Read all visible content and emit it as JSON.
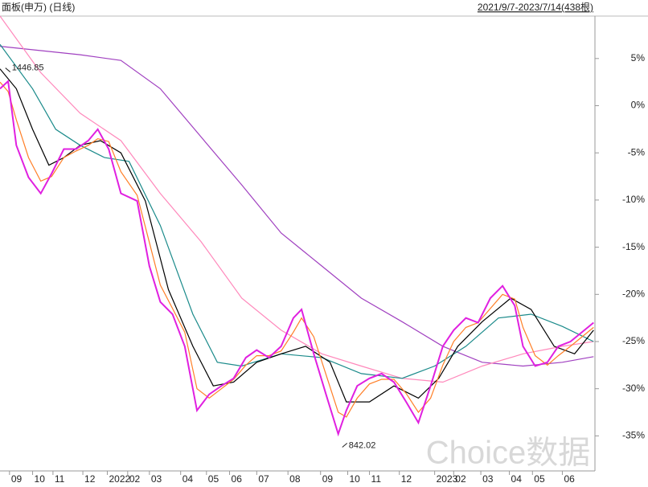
{
  "chart_data": {
    "type": "line",
    "title": "面板(申万) (日线)",
    "subtitle": "2021/9/7-2023/7/14(438根)",
    "watermark": "Choice数据",
    "annotations": [
      {
        "text": "1446.85",
        "x": 4,
        "y": 4.0
      },
      {
        "text": "842.02",
        "x": 252,
        "y": -36.2
      }
    ],
    "x": [
      0,
      6,
      12,
      21,
      30,
      38,
      47,
      56,
      65,
      72,
      80,
      89,
      101,
      110,
      118,
      127,
      136,
      145,
      154,
      163,
      172,
      181,
      189,
      198,
      207,
      216,
      222,
      231,
      240,
      249,
      255,
      263,
      272,
      281,
      290,
      299,
      308,
      317,
      326,
      334,
      343,
      352,
      361,
      370,
      379,
      385,
      394,
      403,
      411,
      420,
      437
    ],
    "xlim": [
      0,
      438
    ],
    "xticks": [
      {
        "value": 7,
        "label": "09"
      },
      {
        "value": 24,
        "label": "10"
      },
      {
        "value": 39,
        "label": "11"
      },
      {
        "value": 61,
        "label": "12"
      },
      {
        "value": 79,
        "label": "2022"
      },
      {
        "value": 94,
        "label": "02"
      },
      {
        "value": 110,
        "label": "03"
      },
      {
        "value": 133,
        "label": "04"
      },
      {
        "value": 152,
        "label": "05"
      },
      {
        "value": 169,
        "label": "06"
      },
      {
        "value": 189,
        "label": "07"
      },
      {
        "value": 212,
        "label": "08"
      },
      {
        "value": 236,
        "label": "09"
      },
      {
        "value": 256,
        "label": "10"
      },
      {
        "value": 272,
        "label": "11"
      },
      {
        "value": 294,
        "label": "12"
      },
      {
        "value": 320,
        "label": "2023"
      },
      {
        "value": 334,
        "label": "02"
      },
      {
        "value": 354,
        "label": "03"
      },
      {
        "value": 375,
        "label": "04"
      },
      {
        "value": 392,
        "label": "05"
      },
      {
        "value": 414,
        "label": "06"
      }
    ],
    "ylim": [
      -36.5,
      9.5
    ],
    "yticks": [
      {
        "value": 5,
        "label": "5%"
      },
      {
        "value": 0,
        "label": "0%"
      },
      {
        "value": -5,
        "label": "-5%"
      },
      {
        "value": -10,
        "label": "-10%"
      },
      {
        "value": -15,
        "label": "-15%"
      },
      {
        "value": -20,
        "label": "-20%"
      },
      {
        "value": -25,
        "label": "-25%"
      },
      {
        "value": -30,
        "label": "-30%"
      },
      {
        "value": -35,
        "label": "-35%"
      }
    ],
    "series": [
      {
        "color": "#a040c0",
        "x": [
          0,
          59,
          89,
          118,
          148,
          178,
          207,
          237,
          266,
          296,
          326,
          355,
          385,
          414,
          437
        ],
        "values": [
          6.3,
          5.4,
          4.8,
          1.8,
          -3.3,
          -8.4,
          -13.5,
          -17.0,
          -20.4,
          -22.9,
          -25.5,
          -27.2,
          -27.6,
          -27.2,
          -26.6
        ]
      },
      {
        "color": "#ff88bb",
        "x": [
          0,
          30,
          59,
          89,
          118,
          148,
          178,
          207,
          237,
          266,
          296,
          326,
          355,
          385,
          414,
          437
        ],
        "values": [
          9.5,
          3.5,
          -0.8,
          -3.7,
          -9.3,
          -14.4,
          -20.4,
          -23.8,
          -26.3,
          -27.6,
          -28.9,
          -29.3,
          -27.6,
          -26.3,
          -25.5,
          -25.0
        ]
      },
      {
        "color": "#1a8a8a",
        "x": [
          0,
          24,
          41,
          59,
          77,
          95,
          118,
          142,
          160,
          178,
          207,
          237,
          266,
          296,
          320,
          343,
          367,
          391,
          414,
          437
        ],
        "values": [
          6.5,
          1.8,
          -2.5,
          -4.2,
          -5.5,
          -5.9,
          -12.7,
          -22.1,
          -27.2,
          -27.6,
          -26.3,
          -26.7,
          -28.4,
          -28.9,
          -27.6,
          -25.5,
          -22.5,
          -22.1,
          -23.4,
          -25.0
        ]
      },
      {
        "color": "#000000",
        "x": [
          0,
          12,
          24,
          36,
          47,
          59,
          74,
          89,
          107,
          124,
          142,
          157,
          172,
          189,
          207,
          225,
          243,
          255,
          272,
          290,
          308,
          323,
          337,
          355,
          376,
          391,
          408,
          423,
          437
        ],
        "values": [
          3.9,
          1.8,
          -2.5,
          -6.3,
          -5.5,
          -4.2,
          -3.7,
          -5.0,
          -10.1,
          -19.5,
          -25.5,
          -29.7,
          -29.3,
          -27.2,
          -26.3,
          -25.5,
          -27.2,
          -31.4,
          -31.4,
          -29.7,
          -31.0,
          -28.9,
          -25.5,
          -22.9,
          -20.4,
          -21.6,
          -25.5,
          -26.3,
          -23.8
        ]
      },
      {
        "color": "#ff7f27",
        "values": [
          2.5,
          1.5,
          -1.5,
          -5.5,
          -8.0,
          -7.5,
          -5.5,
          -4.8,
          -4.2,
          -3.5,
          -3.8,
          -7.0,
          -9.5,
          -14.5,
          -19.0,
          -21.5,
          -24.0,
          -30.0,
          -31.0,
          -30.0,
          -29.0,
          -27.5,
          -26.5,
          -26.5,
          -26.0,
          -24.0,
          -22.5,
          -24.5,
          -28.5,
          -32.5,
          -33.0,
          -31.0,
          -29.5,
          -29.0,
          -29.0,
          -30.5,
          -32.5,
          -31.0,
          -27.5,
          -25.0,
          -23.5,
          -23.0,
          -21.5,
          -20.0,
          -20.5,
          -23.5,
          -26.5,
          -27.5,
          -26.5,
          -25.5,
          -23.5
        ]
      },
      {
        "color": "#e020e0",
        "values": [
          1.8,
          2.6,
          -4.2,
          -7.6,
          -9.3,
          -7.2,
          -4.6,
          -4.6,
          -3.7,
          -2.5,
          -4.6,
          -9.3,
          -10.1,
          -17.0,
          -20.8,
          -22.1,
          -25.5,
          -32.3,
          -30.6,
          -29.7,
          -28.9,
          -26.7,
          -25.9,
          -26.7,
          -25.5,
          -22.5,
          -21.6,
          -26.3,
          -30.6,
          -34.8,
          -32.3,
          -29.7,
          -28.9,
          -28.4,
          -29.3,
          -31.4,
          -33.6,
          -29.7,
          -25.5,
          -23.8,
          -22.5,
          -23.0,
          -20.4,
          -19.1,
          -21.2,
          -25.5,
          -27.6,
          -27.2,
          -25.5,
          -25.0,
          -23.0
        ]
      }
    ]
  }
}
